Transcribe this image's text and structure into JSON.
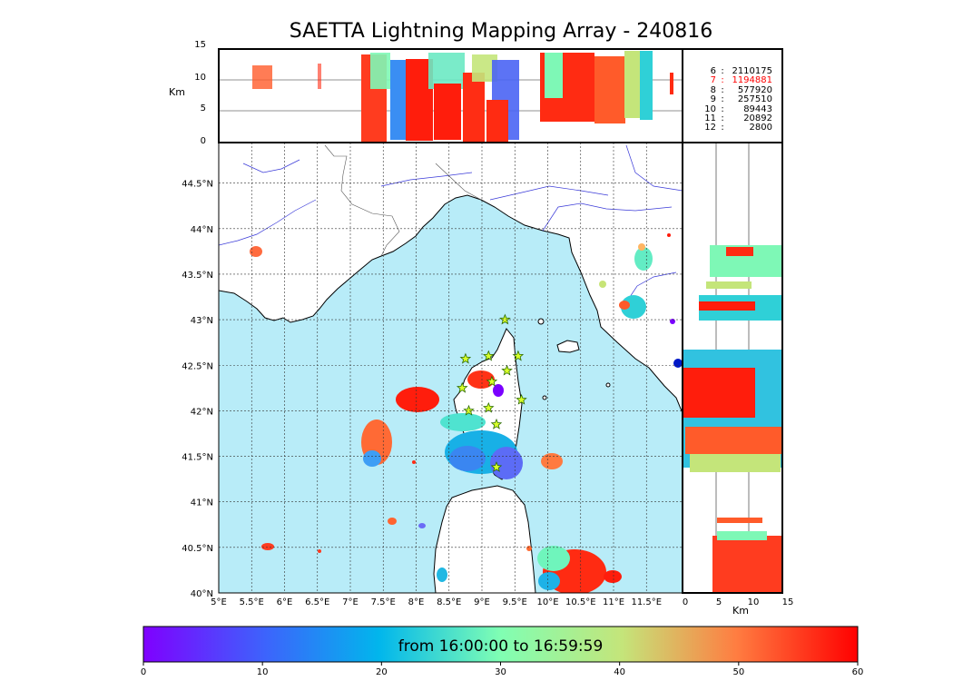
{
  "title": "SAETTA Lightning Mapping Array - 240816",
  "top_panel": {
    "ylabel": "Km",
    "yticks": [
      "15",
      "10",
      "5",
      "0"
    ]
  },
  "right_panel": {
    "xlabel": "Km",
    "xticks": [
      "0",
      "5",
      "10",
      "15"
    ]
  },
  "map": {
    "lon_ticks": [
      "5°E",
      "5.5°E",
      "6°E",
      "6.5°E",
      "7°E",
      "7.5°E",
      "8°E",
      "8.5°E",
      "9°E",
      "9.5°E",
      "10°E",
      "10.5°E",
      "11°E",
      "11.5°E"
    ],
    "lat_ticks": [
      "44.5°N",
      "44°N",
      "43.5°N",
      "43°N",
      "42.5°N",
      "42°N",
      "41.5°N",
      "41°N",
      "40.5°N",
      "40°N"
    ],
    "sea_color": "#b8ecf8",
    "stations": [
      [
        9.35,
        43.0
      ],
      [
        8.75,
        42.57
      ],
      [
        9.1,
        42.6
      ],
      [
        9.55,
        42.6
      ],
      [
        9.38,
        42.44
      ],
      [
        9.15,
        42.32
      ],
      [
        8.7,
        42.25
      ],
      [
        9.6,
        42.12
      ],
      [
        8.8,
        42.0
      ],
      [
        9.1,
        42.03
      ],
      [
        9.22,
        41.85
      ],
      [
        9.22,
        41.38
      ]
    ]
  },
  "stats": [
    {
      "k": "6",
      "v": "2110175",
      "highlight": false
    },
    {
      "k": "7",
      "v": "1194881",
      "highlight": true
    },
    {
      "k": "8",
      "v": "577920",
      "highlight": false
    },
    {
      "k": "9",
      "v": "257510",
      "highlight": false
    },
    {
      "k": "10",
      "v": "89443",
      "highlight": false
    },
    {
      "k": "11",
      "v": "20892",
      "highlight": false
    },
    {
      "k": "12",
      "v": "2800",
      "highlight": false
    }
  ],
  "colorbar": {
    "label": "from 16:00:00 to 16:59:59",
    "ticks": [
      "0",
      "10",
      "20",
      "30",
      "40",
      "50",
      "60"
    ],
    "colormap": "rainbow",
    "range": [
      0,
      60
    ]
  }
}
